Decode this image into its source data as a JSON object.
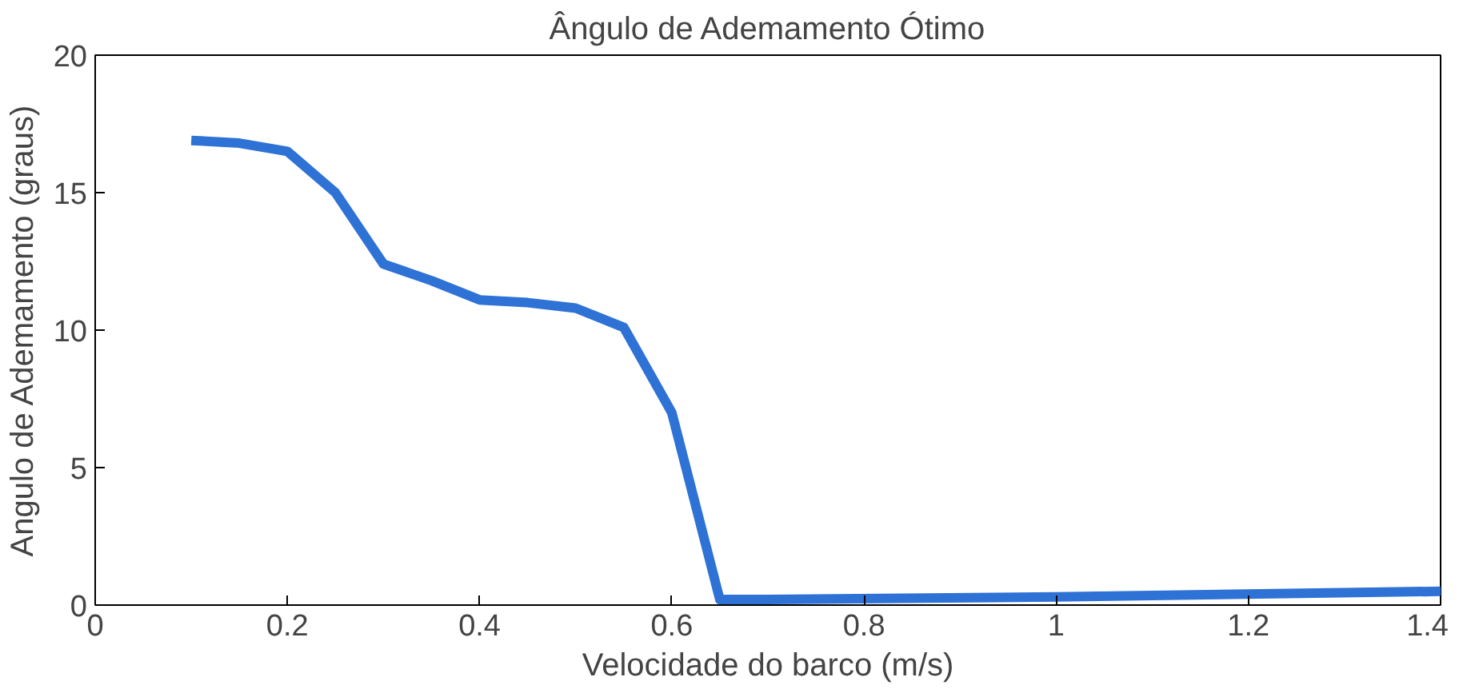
{
  "chart_data": {
    "type": "line",
    "title": "Ângulo de Ademamento Ótimo",
    "xlabel": "Velocidade do barco (m/s)",
    "ylabel": "Angulo de Ademamento (graus)",
    "x": [
      0.1,
      0.15,
      0.2,
      0.25,
      0.3,
      0.35,
      0.4,
      0.45,
      0.5,
      0.55,
      0.6,
      0.65,
      0.7,
      1.0,
      1.4
    ],
    "series": [
      {
        "color": "#2f72d6",
        "values": [
          16.9,
          16.8,
          16.5,
          15.0,
          12.4,
          11.8,
          11.1,
          11.0,
          10.8,
          10.1,
          7.0,
          0.2,
          0.2,
          0.3,
          0.5
        ]
      }
    ],
    "xlim": [
      0,
      1.4
    ],
    "xticks": [
      0,
      0.2,
      0.4,
      0.6,
      0.8,
      1,
      1.2,
      1.4
    ],
    "ylim": [
      0,
      20
    ],
    "yticks": [
      0,
      5,
      10,
      15,
      20
    ],
    "grid": false,
    "marker": "none",
    "line_style": "solid"
  }
}
